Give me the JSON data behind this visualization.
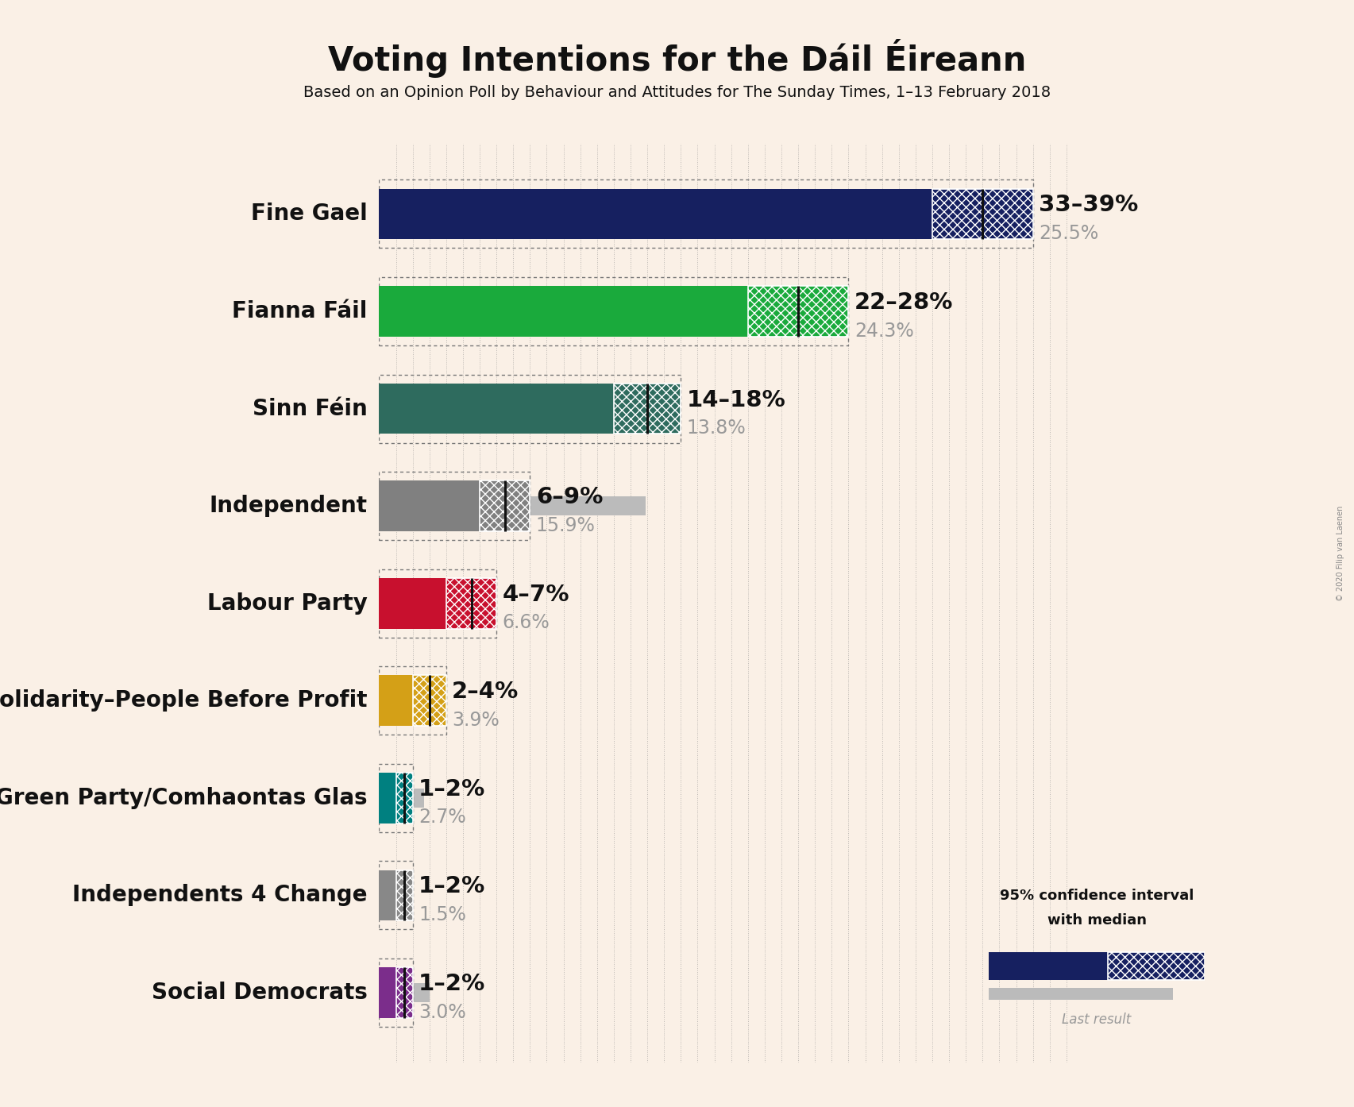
{
  "title": "Voting Intentions for the Dáil Éireann",
  "subtitle": "Based on an Opinion Poll by Behaviour and Attitudes for The Sunday Times, 1–13 February 2018",
  "copyright": "© 2020 Filip van Laenen",
  "background_color": "#FAF0E6",
  "parties": [
    {
      "name": "Fine Gael",
      "ci_low": 33,
      "ci_high": 39,
      "median": 36,
      "last_result": 25.5,
      "color": "#162060",
      "label": "33–39%",
      "last_label": "25.5%"
    },
    {
      "name": "Fianna Fáil",
      "ci_low": 22,
      "ci_high": 28,
      "median": 25,
      "last_result": 24.3,
      "color": "#1AAA3C",
      "label": "22–28%",
      "last_label": "24.3%"
    },
    {
      "name": "Sinn Féin",
      "ci_low": 14,
      "ci_high": 18,
      "median": 16,
      "last_result": 13.8,
      "color": "#2E6B5E",
      "label": "14–18%",
      "last_label": "13.8%"
    },
    {
      "name": "Independent",
      "ci_low": 6,
      "ci_high": 9,
      "median": 7.5,
      "last_result": 15.9,
      "color": "#808080",
      "label": "6–9%",
      "last_label": "15.9%"
    },
    {
      "name": "Labour Party",
      "ci_low": 4,
      "ci_high": 7,
      "median": 5.5,
      "last_result": 6.6,
      "color": "#C8102E",
      "label": "4–7%",
      "last_label": "6.6%"
    },
    {
      "name": "Solidarity–People Before Profit",
      "ci_low": 2,
      "ci_high": 4,
      "median": 3,
      "last_result": 3.9,
      "color": "#D4A017",
      "label": "2–4%",
      "last_label": "3.9%"
    },
    {
      "name": "Green Party/Comhaontas Glas",
      "ci_low": 1,
      "ci_high": 2,
      "median": 1.5,
      "last_result": 2.7,
      "color": "#008080",
      "label": "1–2%",
      "last_label": "2.7%"
    },
    {
      "name": "Independents 4 Change",
      "ci_low": 1,
      "ci_high": 2,
      "median": 1.5,
      "last_result": 1.5,
      "color": "#888888",
      "label": "1–2%",
      "last_label": "1.5%"
    },
    {
      "name": "Social Democrats",
      "ci_low": 1,
      "ci_high": 2,
      "median": 1.5,
      "last_result": 3.0,
      "color": "#7B2D8B",
      "label": "1–2%",
      "last_label": "3.0%"
    }
  ],
  "xlim_max": 42,
  "title_fontsize": 30,
  "subtitle_fontsize": 14,
  "label_fontsize": 21,
  "last_label_fontsize": 17,
  "party_fontsize": 20,
  "legend_text_line1": "95% confidence interval",
  "legend_text_line2": "with median",
  "legend_label_last": "Last result"
}
